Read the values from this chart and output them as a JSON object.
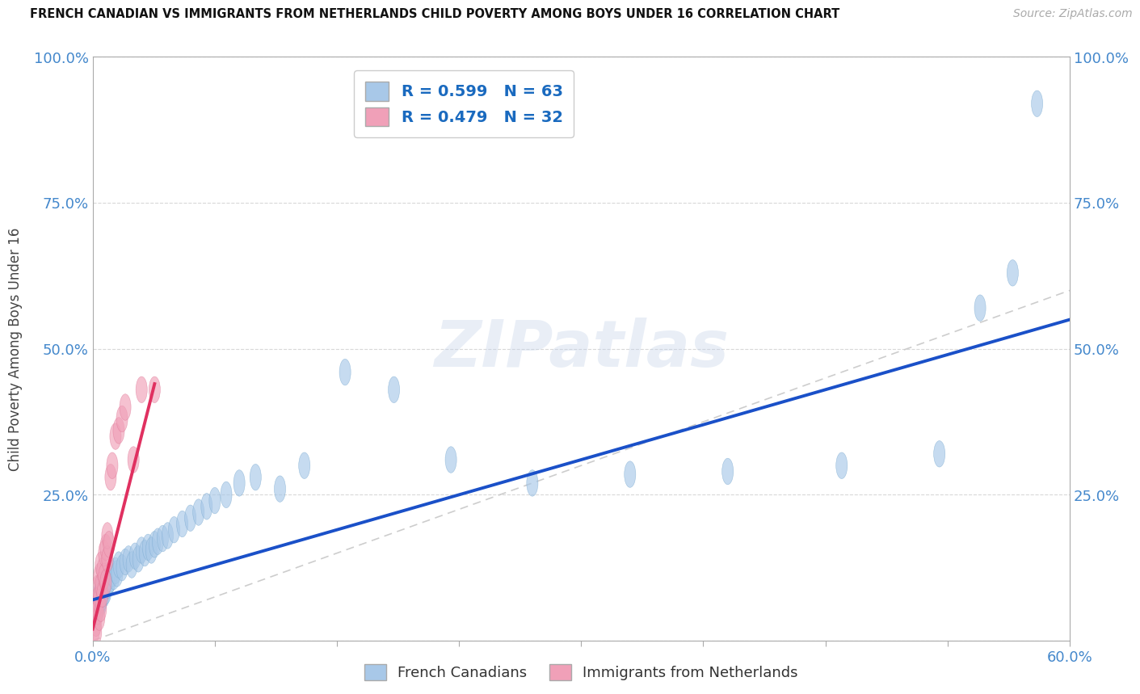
{
  "title": "FRENCH CANADIAN VS IMMIGRANTS FROM NETHERLANDS CHILD POVERTY AMONG BOYS UNDER 16 CORRELATION CHART",
  "source": "Source: ZipAtlas.com",
  "ylabel": "Child Poverty Among Boys Under 16",
  "xlim": [
    0.0,
    0.6
  ],
  "ylim": [
    0.0,
    1.0
  ],
  "xticks": [
    0.0,
    0.075,
    0.15,
    0.225,
    0.3,
    0.375,
    0.45,
    0.525,
    0.6
  ],
  "yticks": [
    0.0,
    0.25,
    0.5,
    0.75,
    1.0
  ],
  "yticklabels_left": [
    "",
    "25.0%",
    "50.0%",
    "75.0%",
    "100.0%"
  ],
  "yticklabels_right": [
    "",
    "25.0%",
    "50.0%",
    "75.0%",
    "100.0%"
  ],
  "legend_blue_R": "R = 0.599",
  "legend_blue_N": "N = 63",
  "legend_pink_R": "R = 0.479",
  "legend_pink_N": "N = 32",
  "legend_label_blue": "French Canadians",
  "legend_label_pink": "Immigrants from Netherlands",
  "blue_color": "#a8c8e8",
  "pink_color": "#f0a0b8",
  "blue_edge_color": "#7aaad0",
  "pink_edge_color": "#e07898",
  "blue_line_color": "#1a50c8",
  "pink_line_color": "#e03060",
  "ref_line_color": "#c8c8c8",
  "watermark": "ZIPatlas",
  "tick_color": "#4488cc",
  "grid_color": "#d8d8d8",
  "blue_scatter_x": [
    0.001,
    0.002,
    0.002,
    0.003,
    0.003,
    0.003,
    0.004,
    0.004,
    0.004,
    0.005,
    0.005,
    0.005,
    0.006,
    0.006,
    0.007,
    0.007,
    0.008,
    0.008,
    0.009,
    0.01,
    0.01,
    0.011,
    0.012,
    0.013,
    0.014,
    0.015,
    0.016,
    0.018,
    0.02,
    0.022,
    0.024,
    0.026,
    0.028,
    0.03,
    0.032,
    0.034,
    0.036,
    0.038,
    0.04,
    0.043,
    0.046,
    0.05,
    0.055,
    0.06,
    0.065,
    0.07,
    0.075,
    0.082,
    0.09,
    0.1,
    0.115,
    0.13,
    0.155,
    0.185,
    0.22,
    0.27,
    0.33,
    0.39,
    0.46,
    0.52,
    0.545,
    0.565,
    0.58
  ],
  "blue_scatter_y": [
    0.05,
    0.055,
    0.06,
    0.05,
    0.065,
    0.07,
    0.06,
    0.075,
    0.08,
    0.065,
    0.07,
    0.09,
    0.075,
    0.085,
    0.08,
    0.095,
    0.085,
    0.1,
    0.095,
    0.1,
    0.11,
    0.105,
    0.115,
    0.11,
    0.12,
    0.115,
    0.13,
    0.125,
    0.135,
    0.14,
    0.13,
    0.145,
    0.14,
    0.155,
    0.15,
    0.16,
    0.155,
    0.165,
    0.17,
    0.175,
    0.18,
    0.19,
    0.2,
    0.21,
    0.22,
    0.23,
    0.24,
    0.25,
    0.27,
    0.28,
    0.26,
    0.3,
    0.46,
    0.43,
    0.31,
    0.27,
    0.285,
    0.29,
    0.3,
    0.32,
    0.57,
    0.63,
    0.92
  ],
  "pink_scatter_x": [
    0.001,
    0.001,
    0.002,
    0.002,
    0.002,
    0.003,
    0.003,
    0.003,
    0.004,
    0.004,
    0.004,
    0.005,
    0.005,
    0.005,
    0.006,
    0.006,
    0.007,
    0.007,
    0.008,
    0.008,
    0.009,
    0.009,
    0.01,
    0.011,
    0.012,
    0.014,
    0.016,
    0.018,
    0.02,
    0.025,
    0.03,
    0.038
  ],
  "pink_scatter_y": [
    0.02,
    0.045,
    0.03,
    0.06,
    0.015,
    0.07,
    0.05,
    0.09,
    0.075,
    0.11,
    0.04,
    0.055,
    0.095,
    0.13,
    0.08,
    0.12,
    0.11,
    0.15,
    0.1,
    0.16,
    0.14,
    0.18,
    0.165,
    0.28,
    0.3,
    0.35,
    0.36,
    0.38,
    0.4,
    0.31,
    0.43,
    0.43
  ],
  "blue_line_x0": 0.0,
  "blue_line_x1": 0.6,
  "blue_line_y0": 0.07,
  "blue_line_y1": 0.55,
  "pink_line_x0": 0.0,
  "pink_line_x1": 0.038,
  "pink_line_y0": 0.02,
  "pink_line_y1": 0.44
}
